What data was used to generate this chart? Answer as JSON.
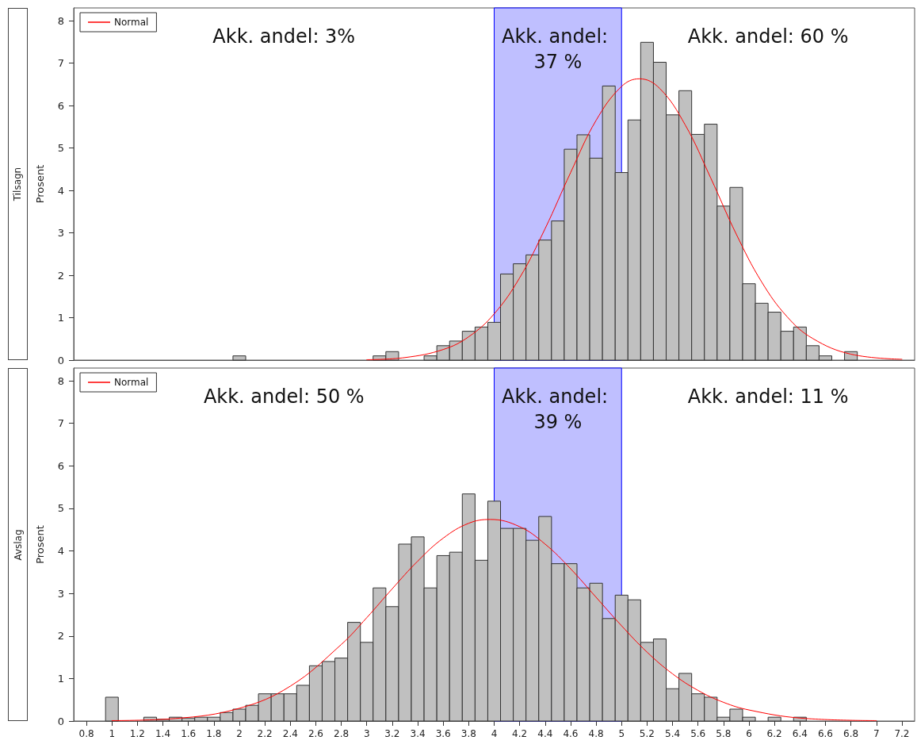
{
  "chart_data": [
    {
      "type": "histogram",
      "title": "Tilsagn",
      "ylabel": "Prosent",
      "color": "#c0c0c0",
      "bins": [
        0.95,
        1.05,
        1.15,
        1.25,
        1.35,
        1.45,
        1.55,
        1.65,
        1.75,
        1.85,
        1.95,
        2.05,
        2.15,
        2.25,
        2.35,
        2.45,
        2.55,
        2.65,
        2.75,
        2.85,
        2.95,
        3.05,
        3.15,
        3.25,
        3.35,
        3.45,
        3.55,
        3.65,
        3.75,
        3.85,
        3.95,
        4.05,
        4.15,
        4.25,
        4.35,
        4.45,
        4.55,
        4.65,
        4.75,
        4.85,
        4.95,
        5.05,
        5.15,
        5.25,
        5.35,
        5.45,
        5.55,
        5.65,
        5.75,
        5.85,
        5.95,
        6.05,
        6.15,
        6.25,
        6.35,
        6.45,
        6.55,
        6.65,
        6.75,
        6.85,
        6.95,
        7.05
      ],
      "values": [
        0,
        0,
        0,
        0,
        0,
        0,
        0,
        0,
        0,
        0,
        0.1,
        0,
        0,
        0,
        0,
        0,
        0,
        0,
        0,
        0,
        0,
        0.1,
        0.2,
        0,
        0,
        0.1,
        0.34,
        0.45,
        0.68,
        0.78,
        0.89,
        2.03,
        2.27,
        2.48,
        2.83,
        3.28,
        4.97,
        5.31,
        4.76,
        6.46,
        4.42,
        5.66,
        7.49,
        7.02,
        5.78,
        6.35,
        5.32,
        5.56,
        3.63,
        4.07,
        1.8,
        1.34,
        1.13,
        0.68,
        0.78,
        0.34,
        0.1,
        0,
        0.2,
        0,
        0
      ],
      "series": [
        {
          "type": "line",
          "name": "Normal",
          "color": "#ff0000",
          "x": [
            3.0,
            3.3,
            3.6,
            3.8,
            4.0,
            4.2,
            4.4,
            4.6,
            4.8,
            5.0,
            5.14,
            5.3,
            5.5,
            5.7,
            5.9,
            6.1,
            6.3,
            6.5,
            6.8,
            7.2
          ],
          "values": [
            0.01,
            0.06,
            0.25,
            0.55,
            1.09,
            1.94,
            3.1,
            4.42,
            5.65,
            6.45,
            6.63,
            6.4,
            5.54,
            4.29,
            2.97,
            1.84,
            1.02,
            0.51,
            0.14,
            0.02
          ]
        }
      ],
      "bands": [
        {
          "axis": "x",
          "from": 4,
          "to": 5,
          "color": "#bfbfff"
        }
      ],
      "annotations": [
        "Akk. andel: 3%",
        "Akk. andel: 37 %",
        "Akk. andel: 60 %"
      ],
      "xlim": [
        0.7,
        7.3
      ],
      "xticks": [
        0.8,
        1,
        1.2,
        1.4,
        1.6,
        1.8,
        2,
        2.2,
        2.4,
        2.6,
        2.8,
        3,
        3.2,
        3.4,
        3.6,
        3.8,
        4,
        4.2,
        4.4,
        4.6,
        4.8,
        5,
        5.2,
        5.4,
        5.6,
        5.8,
        6,
        6.2,
        6.4,
        6.6,
        6.8,
        7,
        7.2
      ],
      "ylim": [
        0,
        8.3
      ],
      "yticks": [
        0,
        1,
        2,
        3,
        4,
        5,
        6,
        7,
        8
      ],
      "tick_labels": "y",
      "legend": "top left",
      "marker": "none",
      "grid": false
    },
    {
      "type": "histogram",
      "title": "Avslag",
      "ylabel": "Prosent",
      "color": "#c0c0c0",
      "bins": [
        0.95,
        1.05,
        1.15,
        1.25,
        1.35,
        1.45,
        1.55,
        1.65,
        1.75,
        1.85,
        1.95,
        2.05,
        2.15,
        2.25,
        2.35,
        2.45,
        2.55,
        2.65,
        2.75,
        2.85,
        2.95,
        3.05,
        3.15,
        3.25,
        3.35,
        3.45,
        3.55,
        3.65,
        3.75,
        3.85,
        3.95,
        4.05,
        4.15,
        4.25,
        4.35,
        4.45,
        4.55,
        4.65,
        4.75,
        4.85,
        4.95,
        5.05,
        5.15,
        5.25,
        5.35,
        5.45,
        5.55,
        5.65,
        5.75,
        5.85,
        5.95,
        6.05,
        6.15,
        6.25,
        6.35,
        6.45,
        6.55,
        6.65,
        6.75,
        6.85,
        6.95,
        7.05
      ],
      "values": [
        0.56,
        0,
        0,
        0.09,
        0.04,
        0.09,
        0.07,
        0.09,
        0.09,
        0.2,
        0.28,
        0.37,
        0.64,
        0.64,
        0.64,
        0.84,
        1.3,
        1.4,
        1.48,
        2.32,
        1.85,
        3.13,
        2.69,
        4.16,
        4.33,
        3.13,
        3.89,
        3.97,
        5.34,
        3.78,
        5.17,
        4.53,
        4.53,
        4.25,
        4.81,
        3.7,
        3.7,
        3.13,
        3.24,
        2.41,
        2.96,
        2.85,
        1.85,
        1.93,
        0.76,
        1.12,
        0.64,
        0.56,
        0.09,
        0.28,
        0.09,
        0,
        0.09,
        0,
        0.09,
        0,
        0,
        0,
        0,
        0,
        0
      ],
      "series": [
        {
          "type": "line",
          "name": "Normal",
          "color": "#ff0000",
          "x": [
            1.0,
            1.5,
            2.0,
            2.4,
            2.8,
            3.0,
            3.2,
            3.4,
            3.6,
            3.8,
            3.97,
            4.2,
            4.4,
            4.6,
            4.8,
            5.0,
            5.2,
            5.4,
            5.6,
            5.8,
            6.0,
            6.4,
            7.0
          ],
          "values": [
            0.01,
            0.06,
            0.3,
            0.82,
            1.8,
            2.43,
            3.11,
            3.76,
            4.3,
            4.65,
            4.74,
            4.57,
            4.16,
            3.58,
            2.91,
            2.24,
            1.62,
            1.11,
            0.72,
            0.44,
            0.26,
            0.07,
            0.01
          ]
        }
      ],
      "bands": [
        {
          "axis": "x",
          "from": 4,
          "to": 5,
          "color": "#bfbfff"
        }
      ],
      "annotations": [
        "Akk. andel: 50 %",
        "Akk. andel: 39 %",
        "Akk. andel: 11 %"
      ],
      "xlim": [
        0.7,
        7.3
      ],
      "xticks": [
        0.8,
        1,
        1.2,
        1.4,
        1.6,
        1.8,
        2,
        2.2,
        2.4,
        2.6,
        2.8,
        3,
        3.2,
        3.4,
        3.6,
        3.8,
        4,
        4.2,
        4.4,
        4.6,
        4.8,
        5,
        5.2,
        5.4,
        5.6,
        5.8,
        6,
        6.2,
        6.4,
        6.6,
        6.8,
        7,
        7.2
      ],
      "ylim": [
        0,
        8.3
      ],
      "yticks": [
        0,
        1,
        2,
        3,
        4,
        5,
        6,
        7,
        8
      ],
      "legend": "top left",
      "marker": "none",
      "grid": false
    }
  ]
}
